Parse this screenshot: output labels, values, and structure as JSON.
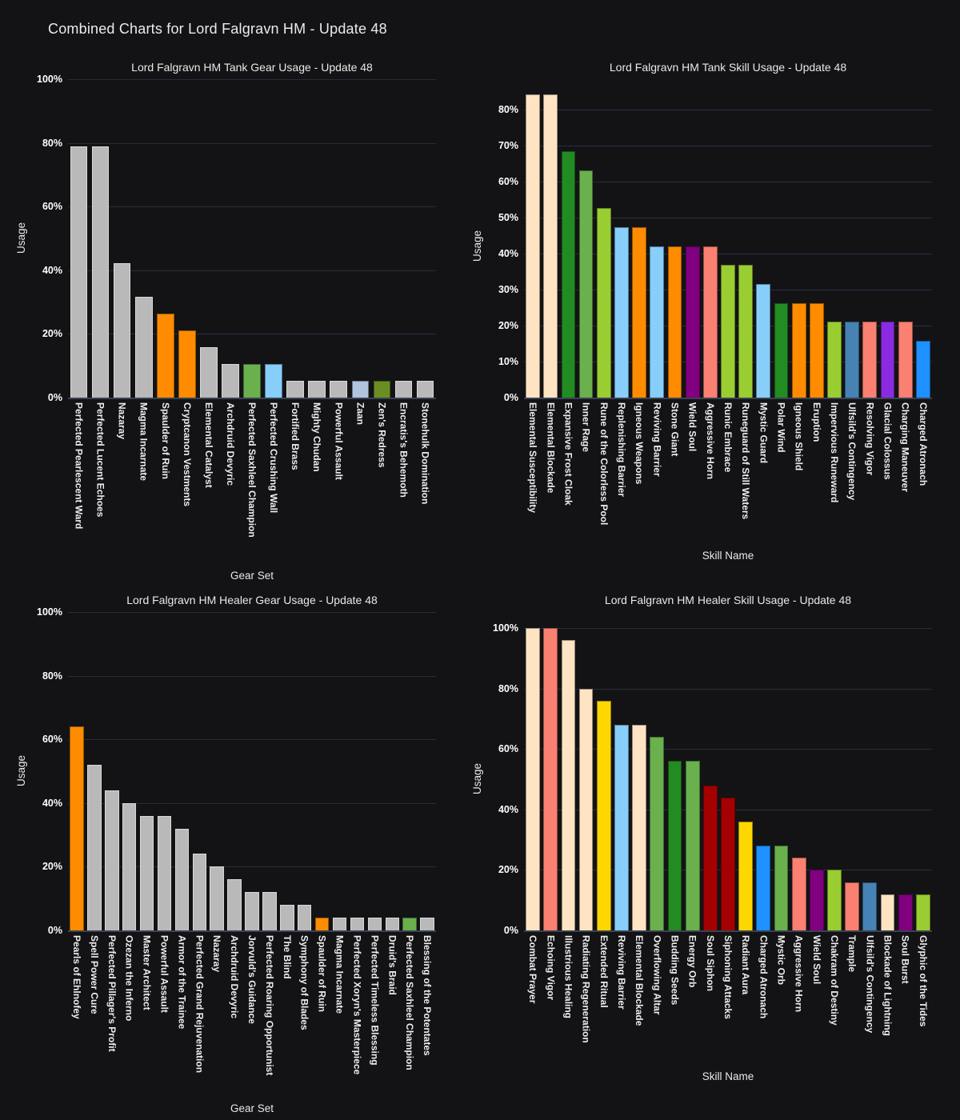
{
  "page_title": "Combined Charts for Lord Falgravn HM - Update 48",
  "colors": {
    "gray": "#b9b9b9",
    "orange": "#ff8c00",
    "green": "#6ab04c",
    "lightblue": "#87cefa",
    "lightsteelblue": "#b0c4de",
    "olive": "#6b8e23",
    "bisque": "#ffe4c4",
    "forestgreen": "#228b22",
    "yellowgreen": "#9acd32",
    "purple": "#800080",
    "salmon": "#fa8072",
    "steelblue": "#4682b4",
    "blueviolet": "#8a2be2",
    "dodgerblue": "#1e90ff",
    "gold": "#ffd700",
    "darkred": "#a50000"
  },
  "chart_data": [
    {
      "id": "tank-gear-usage",
      "type": "bar",
      "title": "Lord Falgravn HM Tank Gear Usage - Update 48",
      "xlabel": "Gear Set",
      "ylabel": "Usage",
      "ylim": [
        0,
        100
      ],
      "yticks": [
        0,
        20,
        40,
        60,
        80,
        100
      ],
      "grid": true,
      "legend": false,
      "categories": [
        "Perfected Pearlescent Ward",
        "Perfected Lucent Echoes",
        "Nazaray",
        "Magma Incarnate",
        "Spaulder of Ruin",
        "Cryptcanon Vestments",
        "Elemental Catalyst",
        "Archdruid Devyric",
        "Perfected Saxhleel Champion",
        "Perfected Crushing Wall",
        "Fortified Brass",
        "Mighty Chudan",
        "Powerful Assault",
        "Zaan",
        "Zen's Redress",
        "Encratis's Behemoth",
        "Stonehulk Domination"
      ],
      "values": [
        78.9,
        78.9,
        42.1,
        31.6,
        26.3,
        21.1,
        15.8,
        10.5,
        10.5,
        10.5,
        5.3,
        5.3,
        5.3,
        5.3,
        5.3,
        5.3,
        5.3
      ],
      "bar_colors": [
        "gray",
        "gray",
        "gray",
        "gray",
        "orange",
        "orange",
        "gray",
        "gray",
        "green",
        "lightblue",
        "gray",
        "gray",
        "gray",
        "lightsteelblue",
        "olive",
        "gray",
        "gray"
      ]
    },
    {
      "id": "tank-skill-usage",
      "type": "bar",
      "title": "Lord Falgravn HM Tank Skill Usage - Update 48",
      "xlabel": "Skill Name",
      "ylabel": "Usage",
      "ylim": [
        0,
        84.2
      ],
      "yticks": [
        0,
        10,
        20,
        30,
        40,
        50,
        60,
        70,
        80
      ],
      "grid": true,
      "legend": false,
      "categories": [
        "Elemental Susceptibility",
        "Elemental Blockade",
        "Expansive Frost Cloak",
        "Inner Rage",
        "Rune of the Colorless Pool",
        "Replenishing Barrier",
        "Igneous Weapons",
        "Reviving Barrier",
        "Stone Giant",
        "Wield Soul",
        "Aggressive Horn",
        "Runic Embrace",
        "Runeguard of Still Waters",
        "Mystic Guard",
        "Polar Wind",
        "Igneous Shield",
        "Eruption",
        "Impervious Runeward",
        "Ulfsild's Contingency",
        "Resolving Vigor",
        "Glacial Colossus",
        "Charging Maneuver",
        "Charged Atronach"
      ],
      "values": [
        84.2,
        84.2,
        68.4,
        63.2,
        52.6,
        47.4,
        47.4,
        42.1,
        42.1,
        42.1,
        42.1,
        36.8,
        36.8,
        31.6,
        26.3,
        26.3,
        26.3,
        21.1,
        21.1,
        21.1,
        21.1,
        21.1,
        15.8
      ],
      "bar_colors": [
        "bisque",
        "bisque",
        "forestgreen",
        "green",
        "yellowgreen",
        "lightblue",
        "orange",
        "lightblue",
        "orange",
        "purple",
        "salmon",
        "yellowgreen",
        "yellowgreen",
        "lightblue",
        "forestgreen",
        "orange",
        "orange",
        "yellowgreen",
        "steelblue",
        "salmon",
        "blueviolet",
        "salmon",
        "dodgerblue"
      ]
    },
    {
      "id": "healer-gear-usage",
      "type": "bar",
      "title": "Lord Falgravn HM Healer Gear Usage - Update 48",
      "xlabel": "Gear Set",
      "ylabel": "Usage",
      "ylim": [
        0,
        100
      ],
      "yticks": [
        0,
        20,
        40,
        60,
        80,
        100
      ],
      "grid": true,
      "legend": false,
      "categories": [
        "Pearls of Ehlnofey",
        "Spell Power Cure",
        "Perfected Pillager's Profit",
        "Ozezan the Inferno",
        "Master Architect",
        "Powerful Assault",
        "Armor of the Trainee",
        "Perfected Grand Rejuvenation",
        "Nazaray",
        "Archdruid Devyric",
        "Jorvuld's Guidance",
        "Perfected Roaring Opportunist",
        "The Blind",
        "Symphony of Blades",
        "Spaulder of Ruin",
        "Magma Incarnate",
        "Perfected Xoryn's Masterpiece",
        "Perfected Timeless Blessing",
        "Druid's Braid",
        "Perfected Saxhleel Champion",
        "Blessing of the Potentates"
      ],
      "values": [
        64,
        52,
        44,
        40,
        36,
        36,
        32,
        24,
        20,
        16,
        12,
        12,
        8,
        8,
        4,
        4,
        4,
        4,
        4,
        4,
        4
      ],
      "bar_colors": [
        "orange",
        "gray",
        "gray",
        "gray",
        "gray",
        "gray",
        "gray",
        "gray",
        "gray",
        "gray",
        "gray",
        "gray",
        "gray",
        "gray",
        "orange",
        "gray",
        "gray",
        "gray",
        "gray",
        "green",
        "gray"
      ]
    },
    {
      "id": "healer-skill-usage",
      "type": "bar",
      "title": "Lord Falgravn HM Healer Skill Usage - Update 48",
      "xlabel": "Skill Name",
      "ylabel": "Usage",
      "ylim": [
        0,
        100
      ],
      "yticks": [
        0,
        20,
        40,
        60,
        80,
        100
      ],
      "grid": true,
      "legend": false,
      "categories": [
        "Combat Prayer",
        "Echoing Vigor",
        "Illustrious Healing",
        "Radiating Regeneration",
        "Extended Ritual",
        "Reviving Barrier",
        "Elemental Blockade",
        "Overflowing Altar",
        "Budding Seeds",
        "Energy Orb",
        "Soul Siphon",
        "Siphoning Attacks",
        "Radiant Aura",
        "Charged Atronach",
        "Mystic Orb",
        "Aggressive Horn",
        "Wield Soul",
        "Chakram of Destiny",
        "Trample",
        "Ulfsild's Contingency",
        "Blockade of Lightning",
        "Soul Burst",
        "Glyphic of the Tides"
      ],
      "values": [
        100,
        100,
        96,
        80,
        76,
        68,
        68,
        64,
        56,
        56,
        48,
        44,
        36,
        28,
        28,
        24,
        20,
        20,
        16,
        16,
        12,
        12,
        12
      ],
      "bar_colors": [
        "bisque",
        "salmon",
        "bisque",
        "bisque",
        "gold",
        "lightblue",
        "bisque",
        "green",
        "forestgreen",
        "green",
        "darkred",
        "darkred",
        "gold",
        "dodgerblue",
        "green",
        "salmon",
        "purple",
        "yellowgreen",
        "salmon",
        "steelblue",
        "bisque",
        "purple",
        "yellowgreen"
      ]
    }
  ]
}
